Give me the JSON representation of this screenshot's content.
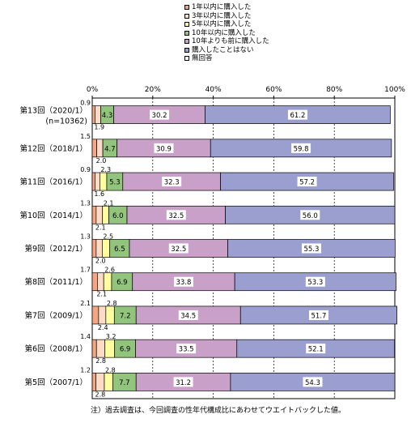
{
  "chart_data": {
    "type": "bar",
    "orientation": "horizontal",
    "stacked": true,
    "xlim": [
      0,
      100
    ],
    "x_ticks": [
      "0%",
      "20%",
      "40%",
      "60%",
      "80%",
      "100%"
    ],
    "grid": true,
    "legend_position": "top",
    "categories": [
      [
        "第13回（2020/1）",
        "(n=10362)"
      ],
      [
        "第12回（2018/1）"
      ],
      [
        "第11回（2016/1）"
      ],
      [
        "第10回（2014/1）"
      ],
      [
        "第9回（2012/1）"
      ],
      [
        "第8回（2011/1）"
      ],
      [
        "第7回（2009/1）"
      ],
      [
        "第6回（2008/1）"
      ],
      [
        "第5回（2007/1）"
      ]
    ],
    "series": [
      {
        "name": "1年以内に購入した",
        "color": "#f4a582",
        "values": [
          0.9,
          1.5,
          0.9,
          1.3,
          1.3,
          1.7,
          2.1,
          1.4,
          1.2
        ],
        "labels": [
          "0.9",
          "1.5",
          "0.9",
          "1.3",
          "1.3",
          "1.7",
          "2.1",
          "1.4",
          "1.2"
        ]
      },
      {
        "name": "3年以内に購入した",
        "color": "#fddbc7",
        "values": [
          1.9,
          2.0,
          1.6,
          2.1,
          2.0,
          2.1,
          2.4,
          2.8,
          2.8
        ],
        "labels": [
          "1.9",
          "2.0",
          "1.6",
          "2.1",
          "2.0",
          "2.1",
          "2.4",
          "2.8",
          "2.8"
        ]
      },
      {
        "name": "5年以内に購入した",
        "color": "#ffffa0",
        "values": [
          0.0,
          0.0,
          2.3,
          2.1,
          2.5,
          2.6,
          2.8,
          3.2,
          2.8
        ],
        "labels": [
          "",
          "",
          "2.3",
          "2.1",
          "2.5",
          "2.6",
          "2.8",
          "3.2",
          "2.8"
        ]
      },
      {
        "name": "10年以内に購入した",
        "color": "#92c47e",
        "values": [
          4.3,
          4.7,
          5.3,
          6.0,
          6.5,
          6.9,
          7.2,
          6.9,
          7.7
        ],
        "labels": [
          "4.3",
          "4.7",
          "5.3",
          "6.0",
          "6.5",
          "6.9",
          "7.2",
          "6.9",
          "7.7"
        ]
      },
      {
        "name": "10年よりも前に購入した",
        "color": "#c9a0c8",
        "values": [
          30.2,
          30.9,
          32.3,
          32.5,
          32.5,
          33.8,
          34.5,
          33.5,
          31.2
        ],
        "labels": [
          "30.2",
          "30.9",
          "32.3",
          "32.5",
          "32.5",
          "33.8",
          "34.5",
          "33.5",
          "31.2"
        ]
      },
      {
        "name": "購入したことはない",
        "color": "#9a9fd0",
        "values": [
          61.2,
          59.8,
          57.2,
          56.0,
          55.3,
          53.3,
          51.7,
          52.1,
          54.3
        ],
        "labels": [
          "61.2",
          "59.8",
          "57.2",
          "56.0",
          "55.3",
          "53.3",
          "51.7",
          "52.1",
          "54.3"
        ]
      },
      {
        "name": "無回答",
        "color": "#ffffff",
        "values": [
          0,
          0,
          0,
          0,
          0,
          0,
          0,
          0,
          0
        ],
        "labels": []
      }
    ]
  },
  "note": "注）過去調査は、今回調査の性年代構成比にあわせてウエイトバックした値。"
}
